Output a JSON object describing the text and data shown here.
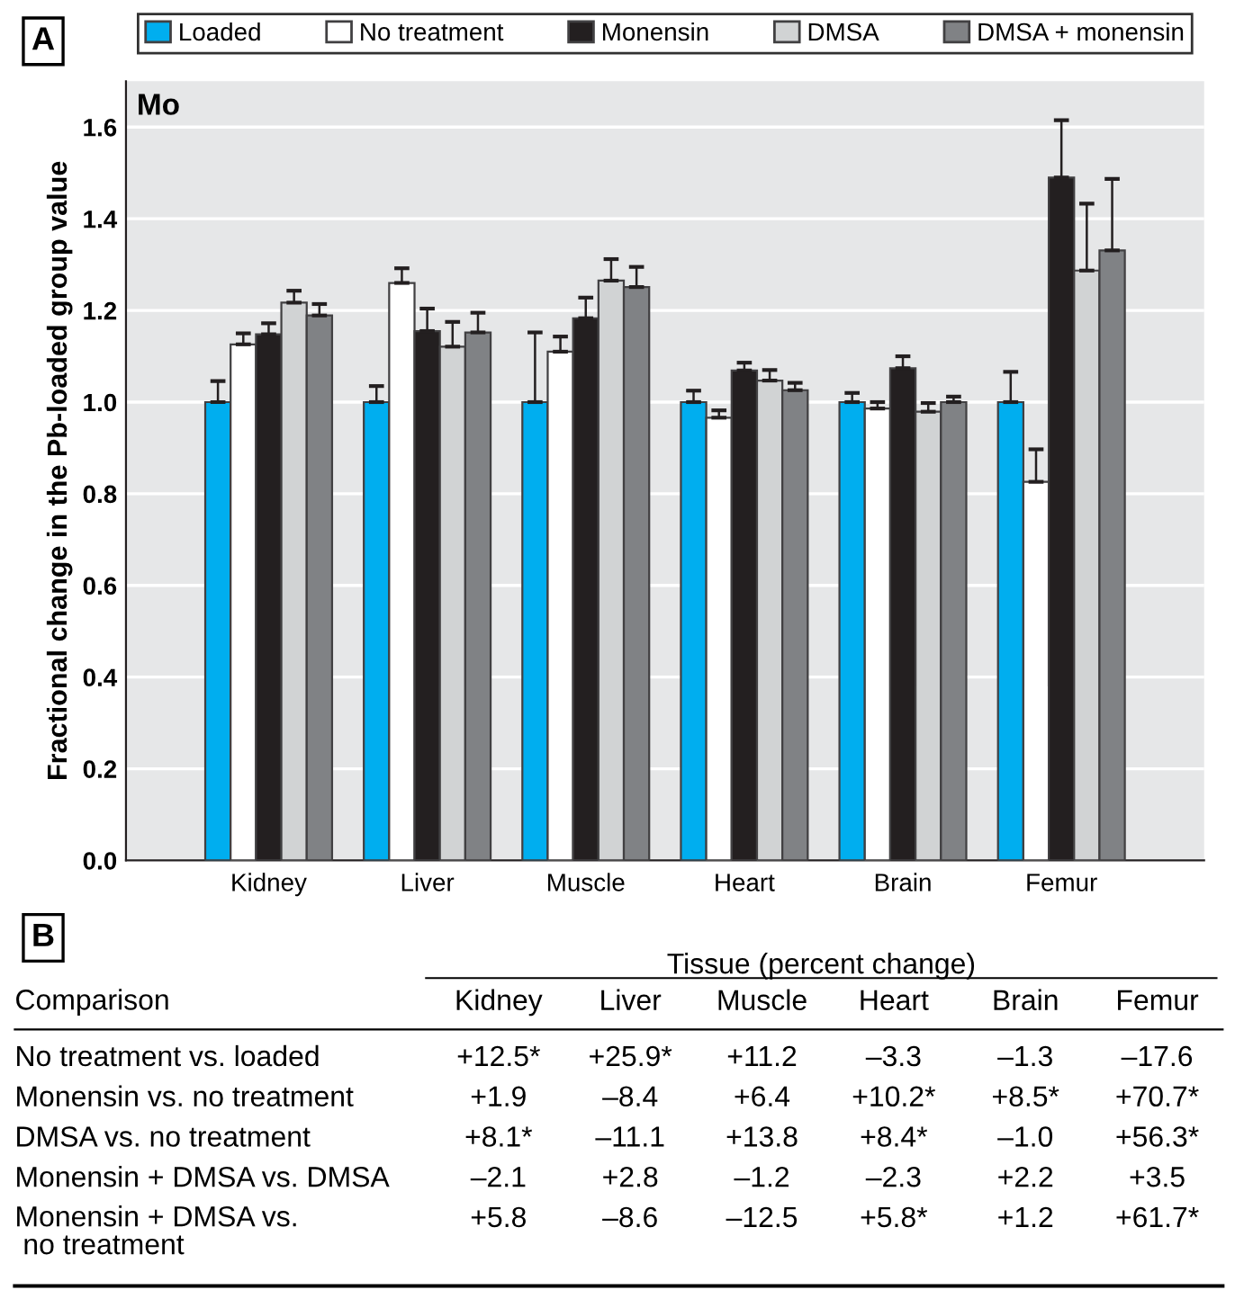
{
  "chart_data": [
    {
      "type": "bar",
      "ylabel": "Fractional change in the Pb-loaded group value",
      "annotations": [
        "A",
        "Mo"
      ],
      "categories": [
        "Kidney",
        "Liver",
        "Muscle",
        "Heart",
        "Brain",
        "Femur"
      ],
      "series": [
        {
          "name": "Loaded",
          "color": "#00aeef",
          "values": [
            1.0,
            1.0,
            1.0,
            1.0,
            1.0,
            1.0
          ],
          "errors": [
            [
              1.0,
              1.046
            ],
            [
              1.0,
              1.035
            ],
            [
              1.0,
              1.152
            ],
            [
              1.0,
              1.025
            ],
            [
              1.0,
              1.02
            ],
            [
              1.0,
              1.066
            ]
          ]
        },
        {
          "name": "No treatment",
          "color": "#ffffff",
          "values": [
            1.126,
            1.26,
            1.11,
            0.966,
            0.986,
            0.826
          ],
          "errors": [
            [
              1.126,
              1.15
            ],
            [
              1.26,
              1.292
            ],
            [
              1.11,
              1.143
            ],
            [
              0.966,
              0.982
            ],
            [
              0.986,
              1.0
            ],
            [
              0.826,
              0.897
            ]
          ]
        },
        {
          "name": "Monensin",
          "color": "#231f20",
          "values": [
            1.148,
            1.155,
            1.183,
            1.069,
            1.074,
            1.49
          ],
          "errors": [
            [
              1.148,
              1.172
            ],
            [
              1.155,
              1.204
            ],
            [
              1.183,
              1.228
            ],
            [
              1.069,
              1.086
            ],
            [
              1.074,
              1.1
            ],
            [
              1.49,
              1.615
            ]
          ]
        },
        {
          "name": "DMSA",
          "color": "#d1d3d4",
          "values": [
            1.217,
            1.121,
            1.265,
            1.047,
            0.979,
            1.287
          ],
          "errors": [
            [
              1.217,
              1.243
            ],
            [
              1.121,
              1.175
            ],
            [
              1.265,
              1.312
            ],
            [
              1.047,
              1.07
            ],
            [
              0.979,
              0.998
            ],
            [
              1.287,
              1.433
            ]
          ]
        },
        {
          "name": "DMSA + monensin",
          "color": "#808285",
          "values": [
            1.189,
            1.152,
            1.251,
            1.026,
            1.0,
            1.331
          ],
          "errors": [
            [
              1.189,
              1.214
            ],
            [
              1.152,
              1.195
            ],
            [
              1.251,
              1.295
            ],
            [
              1.026,
              1.042
            ],
            [
              1.0,
              1.012
            ],
            [
              1.331,
              1.487
            ]
          ]
        }
      ],
      "ylim": [
        0,
        1.7
      ],
      "yticks": [
        {
          "value": 0,
          "label": "0.0"
        },
        {
          "value": 0.2,
          "label": "0.2"
        },
        {
          "value": 0.4,
          "label": "0.4"
        },
        {
          "value": 0.6,
          "label": "0.6"
        },
        {
          "value": 0.8,
          "label": "0.8"
        },
        {
          "value": 1.0,
          "label": "1.0"
        },
        {
          "value": 1.2,
          "label": "1.2"
        },
        {
          "value": 1.4,
          "label": "1.4"
        },
        {
          "value": 1.6,
          "label": "1.6"
        }
      ],
      "grid": "y",
      "legend": "top"
    },
    {
      "type": "other",
      "title": "Tissue (percent change)",
      "ylabel": "Comparison",
      "annotations": [
        "B"
      ],
      "categories": [
        "Kidney",
        "Liver",
        "Muscle",
        "Heart",
        "Brain",
        "Femur"
      ],
      "y_categories": [
        "No treatment vs. loaded",
        "Monensin vs. no treatment",
        "DMSA vs. no treatment",
        "Monensin + DMSA vs. DMSA",
        "Monensin + DMSA vs.\n no treatment"
      ],
      "cell_labels": [
        [
          "+12.5*",
          "+25.9*",
          "+11.2",
          "–3.3",
          "–1.3",
          "–17.6"
        ],
        [
          "+1.9",
          "–8.4",
          "+6.4",
          "+10.2*",
          "+8.5*",
          "+70.7*"
        ],
        [
          "+8.1*",
          "–11.1",
          "+13.8",
          "+8.4*",
          "–1.0",
          "+56.3*"
        ],
        [
          "–2.1",
          "+2.8",
          "–1.2",
          "–2.3",
          "+2.2",
          "+3.5"
        ],
        [
          "+5.8",
          "–8.6",
          "–12.5",
          "+5.8*",
          "+1.2",
          "+61.7*"
        ]
      ]
    }
  ]
}
